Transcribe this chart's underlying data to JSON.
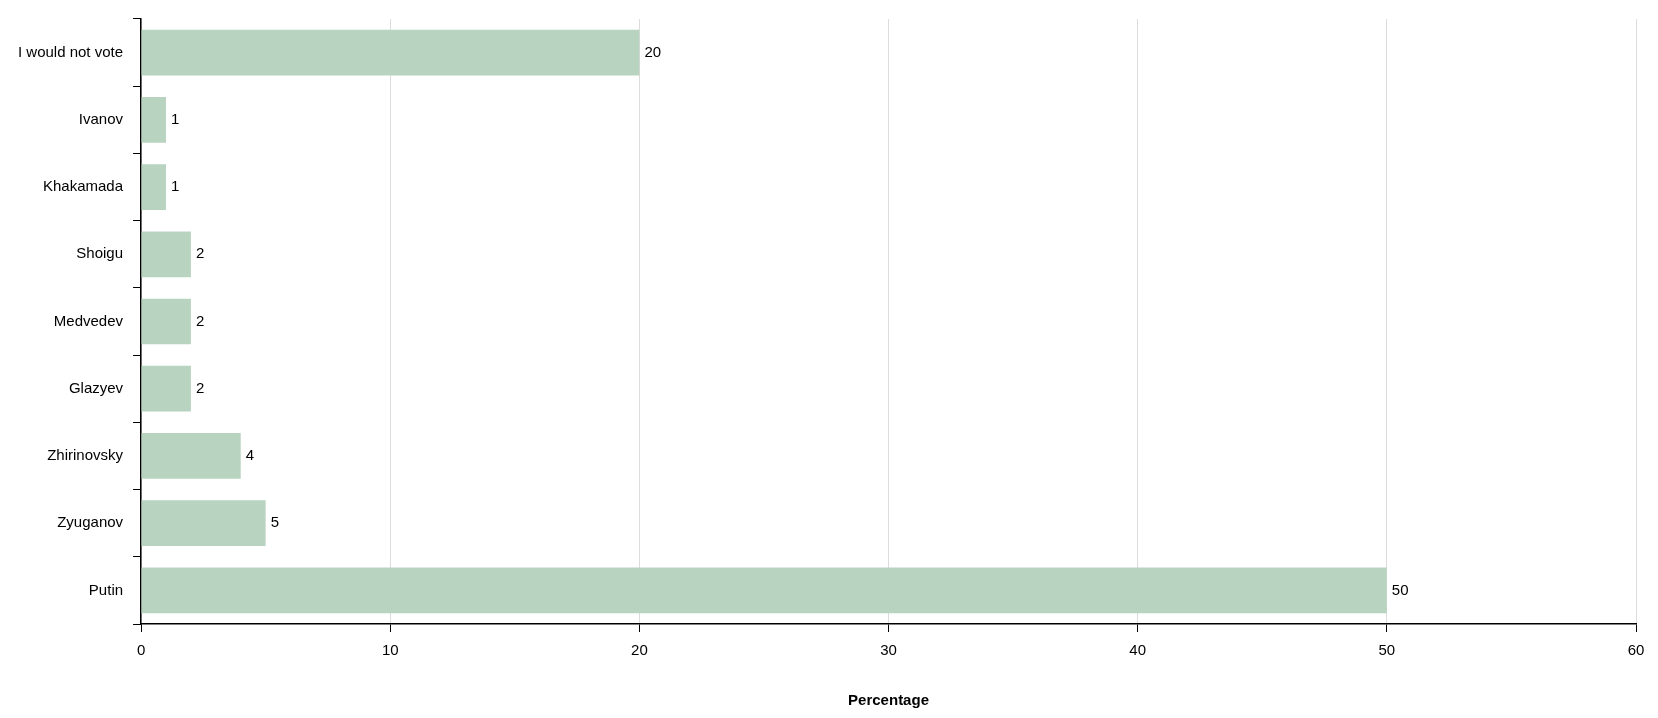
{
  "chart_data": {
    "type": "bar",
    "orientation": "horizontal",
    "xlabel": "Percentage",
    "categories": [
      "I would not vote",
      "Ivanov",
      "Khakamada",
      "Shoigu",
      "Medvedev",
      "Glazyev",
      "Zhirinovsky",
      "Zyuganov",
      "Putin"
    ],
    "values": [
      20,
      1,
      1,
      2,
      2,
      2,
      4,
      5,
      50
    ],
    "color": "#b9d3c1",
    "xlim": [
      0,
      60
    ],
    "xticks": [
      0,
      10,
      20,
      30,
      40,
      50,
      60
    ],
    "grid": "x",
    "data_labels": true
  }
}
